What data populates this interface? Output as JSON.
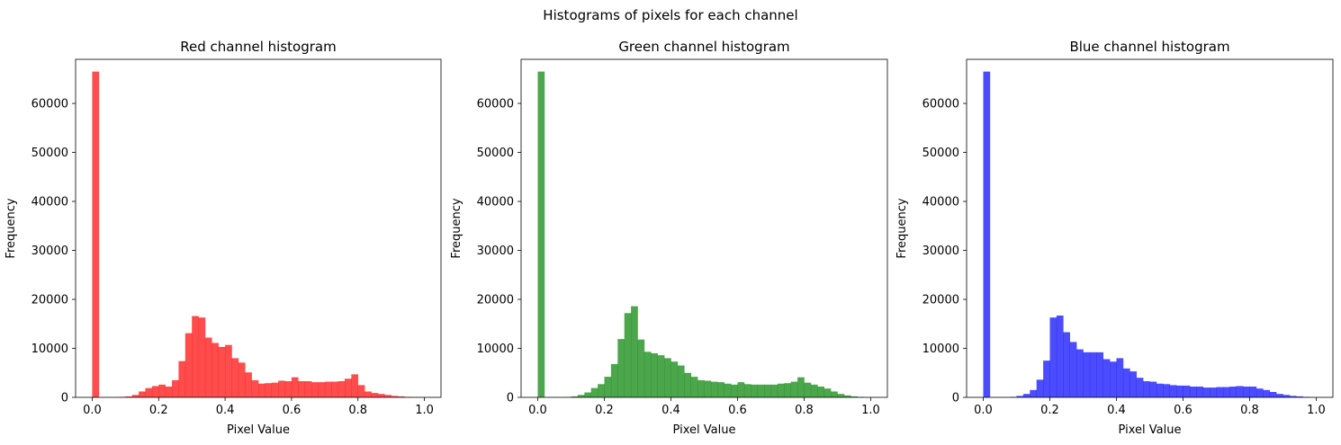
{
  "figure": {
    "suptitle": "Histograms of pixels for each channel"
  },
  "chart_data": [
    {
      "type": "bar",
      "title": "Red channel histogram",
      "xlabel": "Pixel Value",
      "ylabel": "Frequency",
      "xlim": [
        -0.05,
        1.05
      ],
      "ylim": [
        0,
        69000
      ],
      "xticks": [
        0.0,
        0.2,
        0.4,
        0.6,
        0.8,
        1.0
      ],
      "xtick_labels": [
        "0.0",
        "0.2",
        "0.4",
        "0.6",
        "0.8",
        "1.0"
      ],
      "yticks": [
        0,
        10000,
        20000,
        30000,
        40000,
        50000,
        60000
      ],
      "ytick_labels": [
        "0",
        "10000",
        "20000",
        "30000",
        "40000",
        "50000",
        "60000"
      ],
      "color": "#ff0000",
      "alpha": 0.7,
      "bin_range": [
        0,
        1
      ],
      "bins": 50,
      "values": [
        66500,
        0,
        0,
        0,
        100,
        200,
        500,
        1200,
        1900,
        2300,
        2600,
        2200,
        3500,
        7400,
        13100,
        16600,
        16300,
        12200,
        11100,
        10300,
        10700,
        8000,
        7100,
        5100,
        3500,
        2800,
        2900,
        3000,
        3400,
        3300,
        4100,
        3300,
        3300,
        3100,
        3100,
        3200,
        3200,
        3300,
        3800,
        4700,
        2500,
        1200,
        900,
        700,
        500,
        300,
        200,
        100,
        50,
        0
      ]
    },
    {
      "type": "bar",
      "title": "Green channel histogram",
      "xlabel": "Pixel Value",
      "ylabel": "Frequency",
      "xlim": [
        -0.05,
        1.05
      ],
      "ylim": [
        0,
        69000
      ],
      "xticks": [
        0.0,
        0.2,
        0.4,
        0.6,
        0.8,
        1.0
      ],
      "xtick_labels": [
        "0.0",
        "0.2",
        "0.4",
        "0.6",
        "0.8",
        "1.0"
      ],
      "yticks": [
        0,
        10000,
        20000,
        30000,
        40000,
        50000,
        60000
      ],
      "ytick_labels": [
        "0",
        "10000",
        "20000",
        "30000",
        "40000",
        "50000",
        "60000"
      ],
      "color": "#008000",
      "alpha": 0.7,
      "bin_range": [
        0,
        1
      ],
      "bins": 50,
      "values": [
        66500,
        0,
        0,
        0,
        50,
        200,
        500,
        1000,
        1900,
        2700,
        4200,
        6800,
        11900,
        17200,
        18600,
        11800,
        9300,
        9000,
        8600,
        8000,
        7300,
        6500,
        5000,
        4200,
        3500,
        3400,
        3200,
        3100,
        2800,
        2600,
        3100,
        2700,
        2600,
        2600,
        2600,
        2600,
        2800,
        2900,
        3200,
        4100,
        3000,
        2600,
        2200,
        1800,
        1200,
        700,
        400,
        200,
        100,
        0
      ]
    },
    {
      "type": "bar",
      "title": "Blue channel histogram",
      "xlabel": "Pixel Value",
      "ylabel": "Frequency",
      "xlim": [
        -0.05,
        1.05
      ],
      "ylim": [
        0,
        69000
      ],
      "xticks": [
        0.0,
        0.2,
        0.4,
        0.6,
        0.8,
        1.0
      ],
      "xtick_labels": [
        "0.0",
        "0.2",
        "0.4",
        "0.6",
        "0.8",
        "1.0"
      ],
      "yticks": [
        0,
        10000,
        20000,
        30000,
        40000,
        50000,
        60000
      ],
      "ytick_labels": [
        "0",
        "10000",
        "20000",
        "30000",
        "40000",
        "50000",
        "60000"
      ],
      "color": "#0000ff",
      "alpha": 0.7,
      "bin_range": [
        0,
        1
      ],
      "bins": 50,
      "values": [
        66500,
        0,
        0,
        0,
        100,
        300,
        700,
        1500,
        3600,
        7500,
        16300,
        16700,
        13300,
        11300,
        9800,
        9200,
        9200,
        9200,
        7800,
        7300,
        8000,
        5900,
        5300,
        4000,
        3300,
        3200,
        2800,
        2700,
        2500,
        2400,
        2400,
        2200,
        2200,
        2000,
        2000,
        2100,
        2100,
        2200,
        2300,
        2200,
        2200,
        1800,
        1500,
        1100,
        700,
        500,
        300,
        200,
        100,
        0
      ]
    }
  ]
}
